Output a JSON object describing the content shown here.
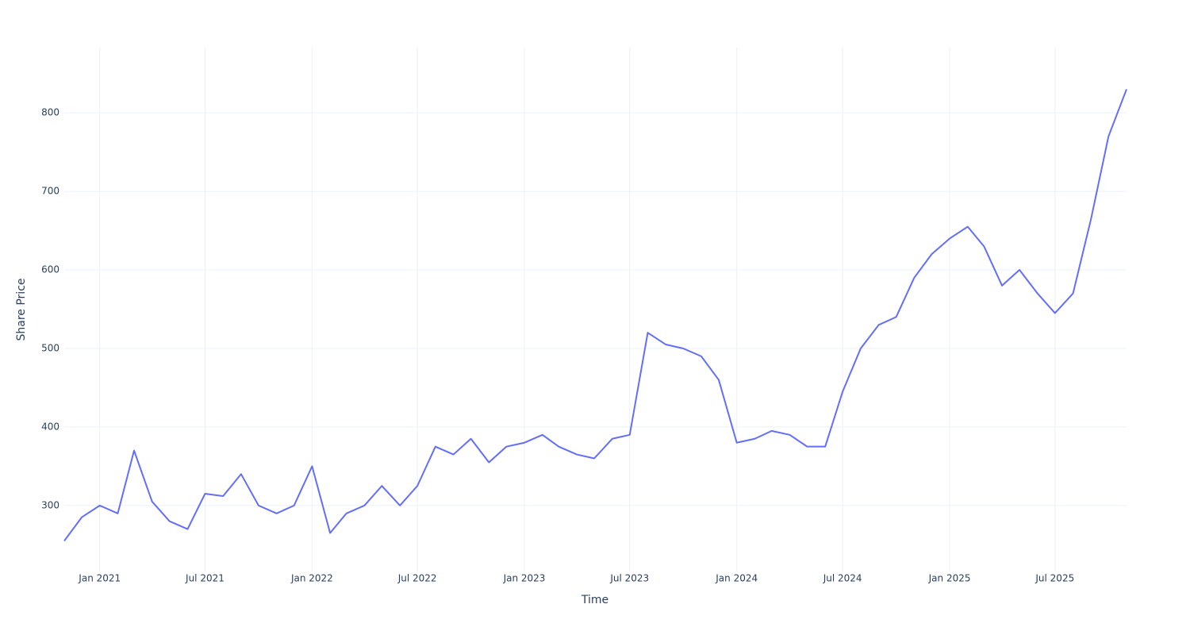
{
  "chart_data": {
    "type": "line",
    "x_label": "Time",
    "y_label": "Share Price",
    "x": [
      "2020-11",
      "2020-12",
      "2021-01",
      "2021-02",
      "2021-03",
      "2021-04",
      "2021-05",
      "2021-06",
      "2021-07",
      "2021-08",
      "2021-09",
      "2021-10",
      "2021-11",
      "2021-12",
      "2022-01",
      "2022-02",
      "2022-03",
      "2022-04",
      "2022-05",
      "2022-06",
      "2022-07",
      "2022-08",
      "2022-09",
      "2022-10",
      "2022-11",
      "2022-12",
      "2023-01",
      "2023-02",
      "2023-03",
      "2023-04",
      "2023-05",
      "2023-06",
      "2023-07",
      "2023-08",
      "2023-09",
      "2023-10",
      "2023-11",
      "2023-12",
      "2024-01",
      "2024-02",
      "2024-03",
      "2024-04",
      "2024-05",
      "2024-06",
      "2024-07",
      "2024-08",
      "2024-09",
      "2024-10",
      "2024-11",
      "2024-12",
      "2025-01",
      "2025-02",
      "2025-03",
      "2025-04",
      "2025-05",
      "2025-06",
      "2025-07",
      "2025-08",
      "2025-09",
      "2025-10",
      "2025-11"
    ],
    "series": [
      {
        "color": "#636efa",
        "values": [
          255,
          285,
          300,
          290,
          370,
          305,
          280,
          270,
          315,
          312,
          340,
          300,
          290,
          300,
          350,
          265,
          290,
          300,
          325,
          300,
          325,
          375,
          365,
          385,
          355,
          375,
          380,
          390,
          375,
          365,
          360,
          385,
          390,
          520,
          505,
          500,
          490,
          460,
          380,
          385,
          395,
          390,
          375,
          375,
          445,
          500,
          530,
          540,
          590,
          620,
          640,
          655,
          630,
          580,
          600,
          570,
          545,
          570,
          665,
          770,
          830
        ]
      }
    ],
    "xlim": [
      "2020-11",
      "2025-11"
    ],
    "xticks": [
      {
        "value": "2021-01",
        "label": "Jan 2021"
      },
      {
        "value": "2021-07",
        "label": "Jul 2021"
      },
      {
        "value": "2022-01",
        "label": "Jan 2022"
      },
      {
        "value": "2022-07",
        "label": "Jul 2022"
      },
      {
        "value": "2023-01",
        "label": "Jan 2023"
      },
      {
        "value": "2023-07",
        "label": "Jul 2023"
      },
      {
        "value": "2024-01",
        "label": "Jan 2024"
      },
      {
        "value": "2024-07",
        "label": "Jul 2024"
      },
      {
        "value": "2025-01",
        "label": "Jan 2025"
      },
      {
        "value": "2025-07",
        "label": "Jul 2025"
      }
    ],
    "ylim": [
      216,
      883
    ],
    "yticks": [
      300,
      400,
      500,
      600,
      700,
      800
    ],
    "grid": true
  }
}
